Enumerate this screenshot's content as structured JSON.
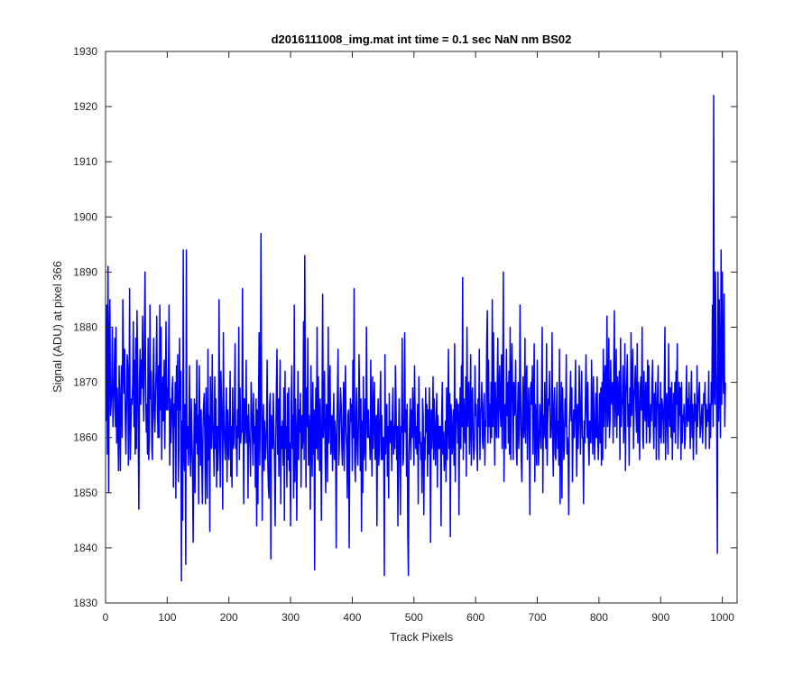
{
  "chart_data": {
    "type": "line",
    "title": "d2016111008_img.mat int time = 0.1 sec  NaN nm BS02",
    "xlabel": "Track Pixels",
    "ylabel": "Signal (ADU) at pixel 366",
    "xlim": [
      0,
      1024
    ],
    "ylim": [
      1830,
      1930
    ],
    "xticks": [
      0,
      100,
      200,
      300,
      400,
      500,
      600,
      700,
      800,
      900,
      1000
    ],
    "yticks": [
      1830,
      1840,
      1850,
      1860,
      1870,
      1880,
      1890,
      1900,
      1910,
      1920,
      1930
    ],
    "grid": false,
    "legend": "none",
    "series": [
      {
        "color": "#0000ff",
        "x_start": 1,
        "x_step": 1,
        "values": [
          1863,
          1884,
          1857,
          1891,
          1850,
          1877,
          1885,
          1864,
          1866,
          1869,
          1880,
          1862,
          1866,
          1871,
          1878,
          1862,
          1880,
          1859,
          1869,
          1862,
          1854,
          1873,
          1864,
          1854,
          1869,
          1873,
          1860,
          1885,
          1875,
          1868,
          1876,
          1863,
          1857,
          1866,
          1875,
          1873,
          1855,
          1866,
          1887,
          1856,
          1861,
          1867,
          1866,
          1870,
          1881,
          1862,
          1874,
          1857,
          1878,
          1858,
          1883,
          1873,
          1860,
          1847,
          1870,
          1876,
          1866,
          1874,
          1869,
          1882,
          1870,
          1863,
          1879,
          1890,
          1870,
          1861,
          1866,
          1857,
          1878,
          1856,
          1860,
          1884,
          1867,
          1872,
          1858,
          1856,
          1870,
          1878,
          1864,
          1861,
          1868,
          1872,
          1882,
          1866,
          1860,
          1873,
          1860,
          1884,
          1865,
          1880,
          1856,
          1867,
          1871,
          1863,
          1874,
          1858,
          1868,
          1881,
          1865,
          1869,
          1865,
          1873,
          1884,
          1855,
          1867,
          1859,
          1863,
          1869,
          1871,
          1851,
          1866,
          1862,
          1870,
          1849,
          1873,
          1865,
          1875,
          1852,
          1858,
          1878,
          1865,
          1872,
          1834,
          1863,
          1845,
          1894,
          1857,
          1854,
          1866,
          1837,
          1894,
          1858,
          1862,
          1855,
          1860,
          1873,
          1857,
          1853,
          1867,
          1860,
          1855,
          1841,
          1856,
          1867,
          1850,
          1866,
          1859,
          1874,
          1857,
          1864,
          1848,
          1873,
          1863,
          1855,
          1865,
          1855,
          1848,
          1862,
          1866,
          1868,
          1859,
          1848,
          1869,
          1858,
          1849,
          1876,
          1856,
          1864,
          1843,
          1871,
          1860,
          1858,
          1875,
          1863,
          1859,
          1853,
          1871,
          1858,
          1867,
          1851,
          1862,
          1854,
          1858,
          1885,
          1864,
          1851,
          1872,
          1867,
          1860,
          1847,
          1879,
          1863,
          1859,
          1856,
          1864,
          1869,
          1852,
          1865,
          1858,
          1856,
          1864,
          1872,
          1853,
          1862,
          1851,
          1869,
          1858,
          1859,
          1866,
          1877,
          1858,
          1862,
          1853,
          1865,
          1860,
          1880,
          1856,
          1869,
          1859,
          1861,
          1861,
          1887,
          1864,
          1848,
          1867,
          1859,
          1863,
          1874,
          1859,
          1864,
          1849,
          1866,
          1860,
          1859,
          1853,
          1870,
          1866,
          1861,
          1855,
          1868,
          1859,
          1862,
          1851,
          1867,
          1844,
          1865,
          1848,
          1866,
          1879,
          1855,
          1866,
          1897,
          1868,
          1845,
          1862,
          1866,
          1854,
          1863,
          1856,
          1858,
          1862,
          1874,
          1856,
          1851,
          1849,
          1866,
          1868,
          1838,
          1864,
          1859,
          1858,
          1868,
          1861,
          1855,
          1844,
          1859,
          1869,
          1876,
          1857,
          1867,
          1853,
          1864,
          1874,
          1848,
          1862,
          1858,
          1863,
          1855,
          1869,
          1845,
          1872,
          1858,
          1862,
          1851,
          1868,
          1856,
          1869,
          1854,
          1859,
          1844,
          1866,
          1873,
          1858,
          1864,
          1849,
          1884,
          1852,
          1867,
          1862,
          1845,
          1859,
          1872,
          1856,
          1865,
          1861,
          1868,
          1851,
          1864,
          1858,
          1860,
          1881,
          1856,
          1893,
          1866,
          1851,
          1869,
          1862,
          1878,
          1855,
          1864,
          1860,
          1847,
          1873,
          1861,
          1853,
          1870,
          1857,
          1865,
          1836,
          1862,
          1869,
          1858,
          1880,
          1856,
          1871,
          1863,
          1854,
          1867,
          1859,
          1845,
          1866,
          1886,
          1860,
          1863,
          1872,
          1857,
          1850,
          1866,
          1865,
          1852,
          1880,
          1859,
          1866,
          1873,
          1857,
          1859,
          1864,
          1854,
          1862,
          1868,
          1856,
          1863,
          1859,
          1840,
          1862,
          1868,
          1876,
          1855,
          1858,
          1864,
          1869,
          1866,
          1859,
          1855,
          1862,
          1870,
          1854,
          1867,
          1873,
          1861,
          1858,
          1849,
          1864,
          1865,
          1840,
          1859,
          1867,
          1863,
          1866,
          1854,
          1874,
          1860,
          1887,
          1856,
          1852,
          1864,
          1869,
          1858,
          1855,
          1862,
          1875,
          1866,
          1854,
          1867,
          1843,
          1863,
          1850,
          1871,
          1856,
          1859,
          1867,
          1854,
          1880,
          1864,
          1860,
          1865,
          1860,
          1860,
          1856,
          1874,
          1860,
          1853,
          1871,
          1858,
          1865,
          1870,
          1856,
          1862,
          1864,
          1844,
          1863,
          1867,
          1855,
          1858,
          1866,
          1872,
          1856,
          1864,
          1856,
          1860,
          1860,
          1835,
          1875,
          1857,
          1863,
          1866,
          1853,
          1862,
          1849,
          1868,
          1859,
          1862,
          1863,
          1854,
          1864,
          1869,
          1857,
          1862,
          1858,
          1873,
          1866,
          1856,
          1862,
          1844,
          1860,
          1867,
          1857,
          1846,
          1862,
          1861,
          1878,
          1855,
          1856,
          1864,
          1879,
          1861,
          1865,
          1853,
          1866,
          1843,
          1835,
          1857,
          1862,
          1867,
          1856,
          1865,
          1860,
          1869,
          1863,
          1855,
          1873,
          1864,
          1858,
          1862,
          1857,
          1866,
          1848,
          1871,
          1859,
          1861,
          1856,
          1859,
          1850,
          1867,
          1864,
          1846,
          1860,
          1856,
          1869,
          1861,
          1866,
          1853,
          1865,
          1857,
          1869,
          1860,
          1841,
          1865,
          1858,
          1862,
          1871,
          1856,
          1867,
          1860,
          1855,
          1863,
          1868,
          1851,
          1864,
          1858,
          1862,
          1858,
          1862,
          1844,
          1864,
          1870,
          1857,
          1861,
          1854,
          1857,
          1863,
          1852,
          1869,
          1856,
          1863,
          1876,
          1858,
          1868,
          1842,
          1866,
          1864,
          1857,
          1860,
          1865,
          1855,
          1877,
          1852,
          1862,
          1867,
          1866,
          1859,
          1866,
          1846,
          1862,
          1869,
          1858,
          1873,
          1862,
          1889,
          1856,
          1867,
          1862,
          1859,
          1871,
          1853,
          1880,
          1862,
          1866,
          1870,
          1857,
          1863,
          1875,
          1855,
          1867,
          1869,
          1860,
          1856,
          1858,
          1873,
          1864,
          1866,
          1859,
          1854,
          1867,
          1862,
          1876,
          1856,
          1865,
          1865,
          1870,
          1860,
          1858,
          1866,
          1868,
          1855,
          1863,
          1862,
          1877,
          1883,
          1859,
          1874,
          1862,
          1866,
          1859,
          1870,
          1860,
          1885,
          1862,
          1879,
          1867,
          1855,
          1870,
          1863,
          1860,
          1869,
          1878,
          1860,
          1868,
          1873,
          1865,
          1862,
          1875,
          1858,
          1870,
          1890,
          1852,
          1863,
          1866,
          1858,
          1876,
          1864,
          1870,
          1859,
          1872,
          1857,
          1880,
          1856,
          1870,
          1877,
          1867,
          1856,
          1870,
          1864,
          1866,
          1874,
          1858,
          1855,
          1864,
          1870,
          1858,
          1862,
          1884,
          1869,
          1856,
          1852,
          1865,
          1871,
          1860,
          1862,
          1878,
          1859,
          1870,
          1873,
          1856,
          1863,
          1869,
          1862,
          1846,
          1869,
          1870,
          1866,
          1873,
          1857,
          1866,
          1877,
          1852,
          1866,
          1862,
          1855,
          1874,
          1861,
          1855,
          1859,
          1866,
          1862,
          1858,
          1869,
          1880,
          1850,
          1864,
          1860,
          1870,
          1862,
          1858,
          1877,
          1855,
          1863,
          1867,
          1866,
          1872,
          1860,
          1860,
          1863,
          1879,
          1859,
          1853,
          1866,
          1869,
          1857,
          1856,
          1865,
          1870,
          1858,
          1863,
          1855,
          1876,
          1848,
          1861,
          1870,
          1849,
          1869,
          1863,
          1856,
          1858,
          1867,
          1862,
          1875,
          1857,
          1860,
          1858,
          1846,
          1862,
          1866,
          1872,
          1863,
          1869,
          1852,
          1861,
          1865,
          1860,
          1866,
          1874,
          1861,
          1853,
          1866,
          1858,
          1862,
          1873,
          1866,
          1857,
          1865,
          1872,
          1860,
          1860,
          1848,
          1863,
          1859,
          1867,
          1875,
          1865,
          1860,
          1870,
          1859,
          1855,
          1863,
          1860,
          1859,
          1874,
          1864,
          1857,
          1871,
          1863,
          1856,
          1862,
          1868,
          1860,
          1871,
          1860,
          1856,
          1862,
          1868,
          1859,
          1869,
          1855,
          1870,
          1856,
          1876,
          1862,
          1870,
          1873,
          1858,
          1868,
          1882,
          1862,
          1865,
          1878,
          1860,
          1863,
          1874,
          1867,
          1866,
          1870,
          1859,
          1873,
          1883,
          1862,
          1868,
          1876,
          1860,
          1871,
          1864,
          1867,
          1872,
          1856,
          1878,
          1862,
          1866,
          1867,
          1873,
          1859,
          1863,
          1877,
          1854,
          1868,
          1870,
          1875,
          1862,
          1866,
          1855,
          1869,
          1862,
          1879,
          1864,
          1870,
          1876,
          1858,
          1867,
          1869,
          1873,
          1865,
          1861,
          1877,
          1859,
          1870,
          1863,
          1856,
          1869,
          1871,
          1865,
          1880,
          1860,
          1858,
          1872,
          1866,
          1863,
          1870,
          1859,
          1867,
          1874,
          1862,
          1873,
          1859,
          1860,
          1866,
          1863,
          1870,
          1874,
          1863,
          1858,
          1868,
          1862,
          1870,
          1856,
          1865,
          1868,
          1873,
          1856,
          1866,
          1860,
          1870,
          1859,
          1867,
          1866,
          1863,
          1859,
          1870,
          1880,
          1856,
          1866,
          1868,
          1861,
          1857,
          1877,
          1865,
          1862,
          1869,
          1860,
          1870,
          1856,
          1863,
          1868,
          1861,
          1870,
          1859,
          1872,
          1866,
          1877,
          1858,
          1862,
          1870,
          1864,
          1869,
          1856,
          1870,
          1859,
          1864,
          1863,
          1866,
          1858,
          1860,
          1866,
          1873,
          1862,
          1867,
          1863,
          1870,
          1864,
          1858,
          1866,
          1872,
          1860,
          1866,
          1856,
          1862,
          1868,
          1863,
          1866,
          1857,
          1873,
          1862,
          1866,
          1868,
          1870,
          1860,
          1862,
          1864,
          1866,
          1859,
          1863,
          1868,
          1866,
          1870,
          1858,
          1866,
          1862,
          1865,
          1863,
          1872,
          1858,
          1866,
          1860,
          1870,
          1866,
          1884,
          1862,
          1922,
          1868,
          1866,
          1890,
          1874,
          1862,
          1839,
          1890,
          1863,
          1885,
          1870,
          1860,
          1894,
          1866,
          1890,
          1873,
          1868,
          1886,
          1862,
          1870
        ]
      }
    ]
  }
}
